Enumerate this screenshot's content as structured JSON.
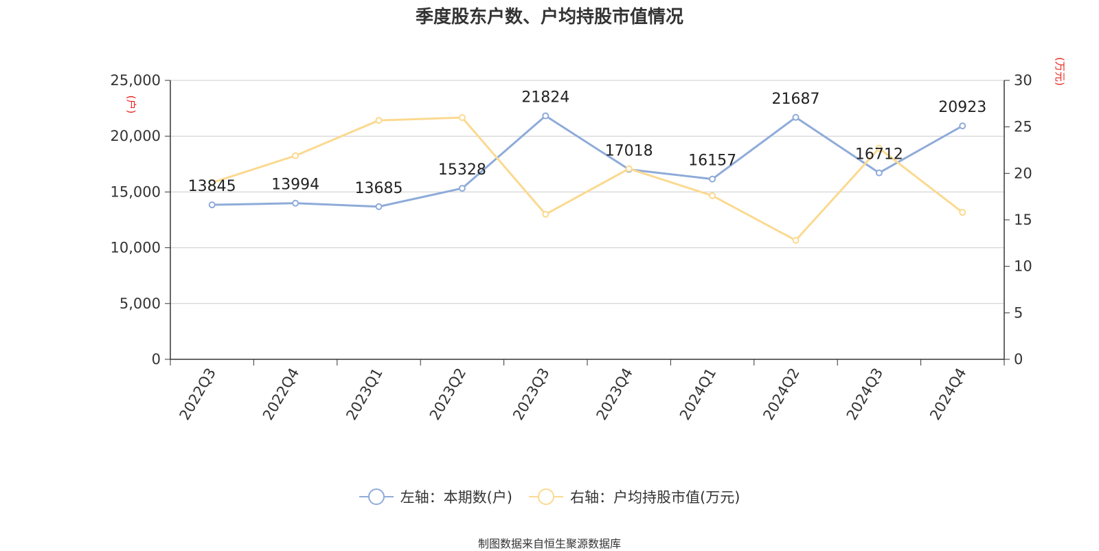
{
  "title": "季度股东户数、户均持股市值情况",
  "source": "制图数据来自恒生聚源数据库",
  "colors": {
    "left_series": "#8EABD9",
    "right_series": "#FBD98F",
    "axis_unit": "#E8231B",
    "source": "#D4A22A"
  },
  "legend": [
    {
      "label": "左轴：本期数(户)"
    },
    {
      "label": "右轴：户均持股市值(万元)"
    }
  ],
  "chart_data": {
    "type": "line",
    "title": "季度股东户数、户均持股市值情况",
    "categories": [
      "2022Q3",
      "2022Q4",
      "2023Q1",
      "2023Q2",
      "2023Q3",
      "2023Q4",
      "2024Q1",
      "2024Q2",
      "2024Q3",
      "2024Q4"
    ],
    "left_axis": {
      "unit": "(户)",
      "ylim": [
        0,
        25000
      ],
      "ticks": [
        "0",
        "5,000",
        "10,000",
        "15,000",
        "20,000",
        "25,000"
      ]
    },
    "right_axis": {
      "unit": "(万元)",
      "ylim": [
        0,
        30
      ],
      "ticks": [
        "0",
        "5",
        "10",
        "15",
        "20",
        "25",
        "30"
      ]
    },
    "series": [
      {
        "name": "左轴：本期数(户)",
        "axis": "left",
        "values": [
          13845,
          13994,
          13685,
          15328,
          21824,
          17018,
          16157,
          21687,
          16712,
          20923
        ],
        "labels": [
          "13845",
          "13994",
          "13685",
          "15328",
          "21824",
          "17018",
          "16157",
          "21687",
          "16712",
          "20923"
        ]
      },
      {
        "name": "右轴：户均持股市值(万元)",
        "axis": "right",
        "values": [
          19.0,
          21.9,
          25.7,
          26.0,
          15.6,
          20.5,
          17.6,
          12.8,
          22.7,
          15.8
        ]
      }
    ],
    "grid": true,
    "legend_position": "bottom"
  }
}
